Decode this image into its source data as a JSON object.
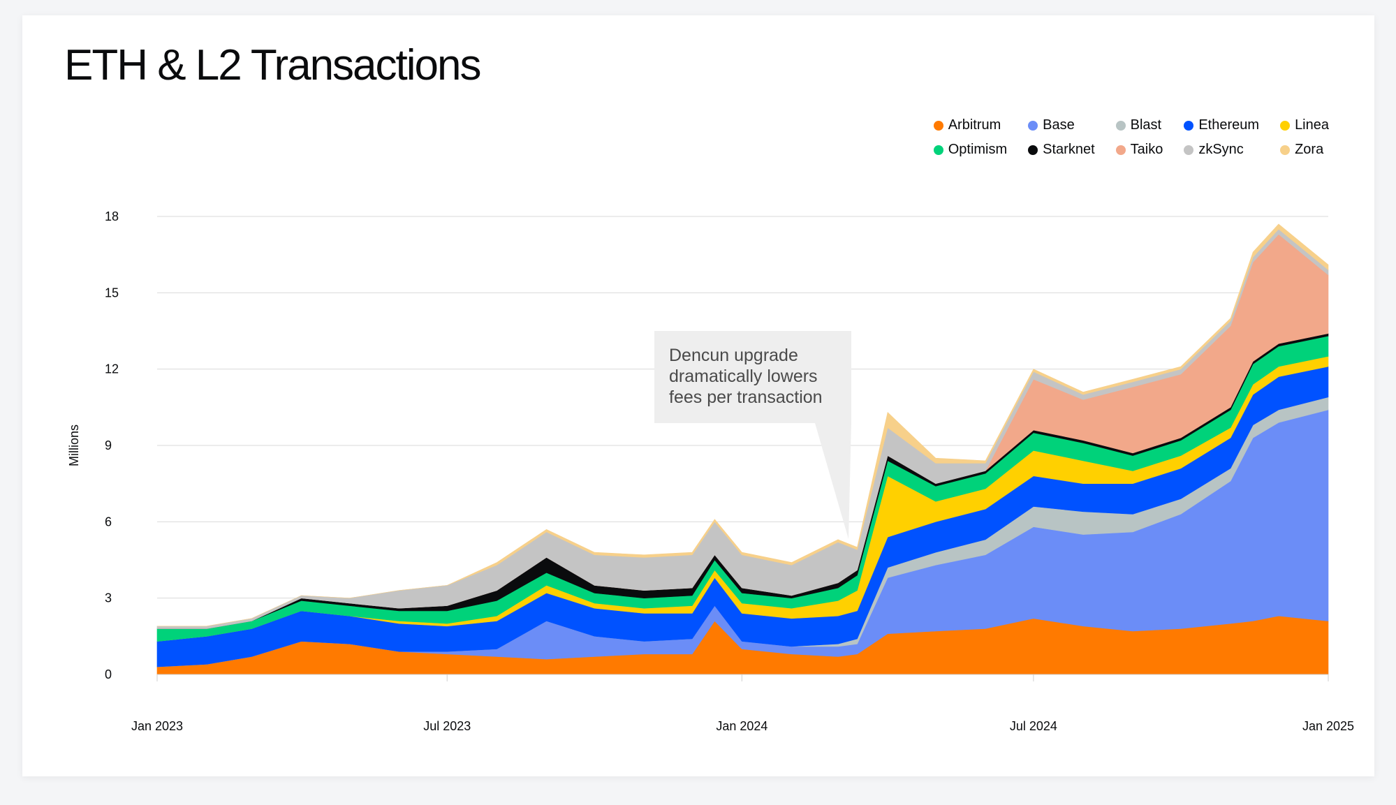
{
  "title": "ETH & L2 Transactions",
  "annotation": "Dencun upgrade dramatically lowers fees per transaction",
  "chart_data": {
    "type": "area",
    "stacked": true,
    "title": "ETH & L2 Transactions",
    "xlabel": "",
    "ylabel": "Millions",
    "ylim": [
      0,
      18
    ],
    "yticks": [
      "0",
      "3",
      "6",
      "9",
      "12",
      "15",
      "18"
    ],
    "xtick_labels": [
      "Jan 2023",
      "Jul 2023",
      "Jan 2024",
      "Jul 2024",
      "Jan 2025"
    ],
    "grid": true,
    "legend_position": "top-right",
    "x": [
      "2023-01-01",
      "2023-02-01",
      "2023-03-01",
      "2023-04-01",
      "2023-05-01",
      "2023-06-01",
      "2023-07-01",
      "2023-08-01",
      "2023-09-01",
      "2023-10-01",
      "2023-11-01",
      "2023-12-01",
      "2023-12-15",
      "2024-01-01",
      "2024-02-01",
      "2024-03-01",
      "2024-03-13",
      "2024-04-01",
      "2024-05-01",
      "2024-06-01",
      "2024-07-01",
      "2024-08-01",
      "2024-09-01",
      "2024-10-01",
      "2024-11-01",
      "2024-11-15",
      "2024-12-01",
      "2025-01-01"
    ],
    "series": [
      {
        "name": "Arbitrum",
        "color": "#ff7a00",
        "values": [
          0.3,
          0.4,
          0.7,
          1.3,
          1.2,
          0.9,
          0.8,
          0.7,
          0.6,
          0.7,
          0.8,
          0.8,
          2.1,
          1.0,
          0.8,
          0.7,
          0.8,
          1.6,
          1.7,
          1.8,
          2.2,
          1.9,
          1.7,
          1.8,
          2.0,
          2.1,
          2.3,
          2.1
        ]
      },
      {
        "name": "Base",
        "color": "#6b8df7",
        "values": [
          0.0,
          0.0,
          0.0,
          0.0,
          0.0,
          0.0,
          0.1,
          0.3,
          1.5,
          0.8,
          0.5,
          0.6,
          0.6,
          0.3,
          0.3,
          0.4,
          0.4,
          2.2,
          2.6,
          2.9,
          3.6,
          3.6,
          3.9,
          4.5,
          5.6,
          7.2,
          7.6,
          8.3
        ]
      },
      {
        "name": "Blast",
        "color": "#b8c4c4",
        "values": [
          0.0,
          0.0,
          0.0,
          0.0,
          0.0,
          0.0,
          0.0,
          0.0,
          0.0,
          0.0,
          0.0,
          0.0,
          0.0,
          0.0,
          0.0,
          0.1,
          0.2,
          0.4,
          0.5,
          0.6,
          0.8,
          0.9,
          0.7,
          0.6,
          0.5,
          0.5,
          0.5,
          0.5
        ]
      },
      {
        "name": "Ethereum",
        "color": "#0052ff",
        "values": [
          1.0,
          1.1,
          1.1,
          1.2,
          1.1,
          1.1,
          1.0,
          1.1,
          1.1,
          1.1,
          1.1,
          1.0,
          1.1,
          1.1,
          1.1,
          1.1,
          1.1,
          1.2,
          1.2,
          1.2,
          1.2,
          1.1,
          1.2,
          1.2,
          1.2,
          1.2,
          1.3,
          1.2
        ]
      },
      {
        "name": "Linea",
        "color": "#ffd000",
        "values": [
          0.0,
          0.0,
          0.0,
          0.0,
          0.0,
          0.1,
          0.1,
          0.2,
          0.3,
          0.2,
          0.2,
          0.3,
          0.3,
          0.4,
          0.4,
          0.6,
          0.8,
          2.4,
          0.8,
          0.8,
          1.0,
          0.9,
          0.5,
          0.5,
          0.4,
          0.4,
          0.4,
          0.4
        ]
      },
      {
        "name": "Optimism",
        "color": "#00d27a",
        "values": [
          0.5,
          0.3,
          0.3,
          0.4,
          0.4,
          0.4,
          0.5,
          0.6,
          0.5,
          0.4,
          0.4,
          0.4,
          0.4,
          0.4,
          0.4,
          0.5,
          0.6,
          0.6,
          0.6,
          0.6,
          0.7,
          0.7,
          0.6,
          0.6,
          0.7,
          0.8,
          0.8,
          0.8
        ]
      },
      {
        "name": "Starknet",
        "color": "#0a0b0d",
        "values": [
          0.0,
          0.0,
          0.0,
          0.1,
          0.1,
          0.1,
          0.2,
          0.4,
          0.6,
          0.3,
          0.3,
          0.3,
          0.2,
          0.2,
          0.1,
          0.2,
          0.2,
          0.2,
          0.1,
          0.1,
          0.1,
          0.1,
          0.1,
          0.1,
          0.1,
          0.1,
          0.1,
          0.1
        ]
      },
      {
        "name": "Taiko",
        "color": "#f2a88a",
        "values": [
          0.0,
          0.0,
          0.0,
          0.0,
          0.0,
          0.0,
          0.0,
          0.0,
          0.0,
          0.0,
          0.0,
          0.0,
          0.0,
          0.0,
          0.0,
          0.0,
          0.0,
          0.0,
          0.0,
          0.0,
          2.0,
          1.6,
          2.6,
          2.5,
          3.2,
          3.9,
          4.3,
          2.3
        ]
      },
      {
        "name": "zkSync",
        "color": "#c4c4c4",
        "values": [
          0.1,
          0.1,
          0.1,
          0.1,
          0.2,
          0.7,
          0.8,
          1.0,
          1.0,
          1.2,
          1.3,
          1.3,
          1.3,
          1.3,
          1.2,
          1.6,
          0.8,
          1.1,
          0.8,
          0.3,
          0.3,
          0.2,
          0.2,
          0.2,
          0.2,
          0.2,
          0.2,
          0.2
        ]
      },
      {
        "name": "Zora",
        "color": "#f7d08a",
        "values": [
          0.0,
          0.0,
          0.0,
          0.0,
          0.0,
          0.0,
          0.0,
          0.1,
          0.1,
          0.1,
          0.1,
          0.1,
          0.1,
          0.1,
          0.1,
          0.1,
          0.1,
          0.6,
          0.2,
          0.1,
          0.1,
          0.1,
          0.1,
          0.1,
          0.1,
          0.2,
          0.2,
          0.2
        ]
      }
    ]
  }
}
